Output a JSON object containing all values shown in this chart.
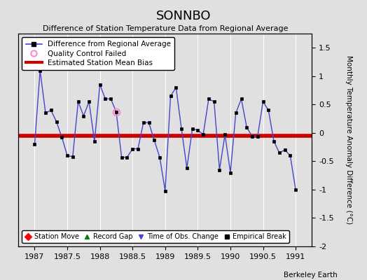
{
  "title": "SONNBO",
  "subtitle": "Difference of Station Temperature Data from Regional Average",
  "ylabel_right": "Monthly Temperature Anomaly Difference (°C)",
  "xlim": [
    1986.75,
    1991.25
  ],
  "ylim": [
    -2.0,
    1.75
  ],
  "yticks": [
    -2.0,
    -1.5,
    -1.0,
    -0.5,
    0.0,
    0.5,
    1.0,
    1.5
  ],
  "xticks": [
    1987,
    1987.5,
    1988,
    1988.5,
    1989,
    1989.5,
    1990,
    1990.5,
    1991
  ],
  "xtick_labels": [
    "1987",
    "1987.5",
    "1988",
    "1988.5",
    "1989",
    "1989.5",
    "1990",
    "1990.5",
    "1991"
  ],
  "mean_bias": -0.05,
  "background_color": "#e0e0e0",
  "line_color": "#4444cc",
  "marker_color": "#000000",
  "bias_color": "#cc0000",
  "qc_fail_x": 1988.25,
  "qc_fail_y": 0.37,
  "footer": "Berkeley Earth",
  "times": [
    1987.0,
    1987.083,
    1987.167,
    1987.25,
    1987.333,
    1987.417,
    1987.5,
    1987.583,
    1987.667,
    1987.75,
    1987.833,
    1987.917,
    1988.0,
    1988.083,
    1988.167,
    1988.25,
    1988.333,
    1988.417,
    1988.5,
    1988.583,
    1988.667,
    1988.75,
    1988.833,
    1988.917,
    1989.0,
    1989.083,
    1989.167,
    1989.25,
    1989.333,
    1989.417,
    1989.5,
    1989.583,
    1989.667,
    1989.75,
    1989.833,
    1989.917,
    1990.0,
    1990.083,
    1990.167,
    1990.25,
    1990.333,
    1990.417,
    1990.5,
    1990.583,
    1990.667,
    1990.75,
    1990.833,
    1990.917,
    1991.0
  ],
  "values": [
    -0.2,
    1.1,
    0.35,
    0.4,
    0.2,
    -0.08,
    -0.4,
    -0.42,
    0.55,
    0.3,
    0.55,
    -0.15,
    0.85,
    0.6,
    0.6,
    0.37,
    -0.43,
    -0.43,
    -0.28,
    -0.28,
    0.18,
    0.18,
    -0.13,
    -0.43,
    -1.02,
    0.65,
    0.8,
    0.07,
    -0.62,
    0.07,
    0.05,
    -0.03,
    0.6,
    0.55,
    -0.65,
    -0.03,
    -0.7,
    0.35,
    0.6,
    0.1,
    -0.06,
    -0.06,
    0.55,
    0.4,
    -0.15,
    -0.35,
    -0.3,
    -0.4,
    -1.0
  ]
}
